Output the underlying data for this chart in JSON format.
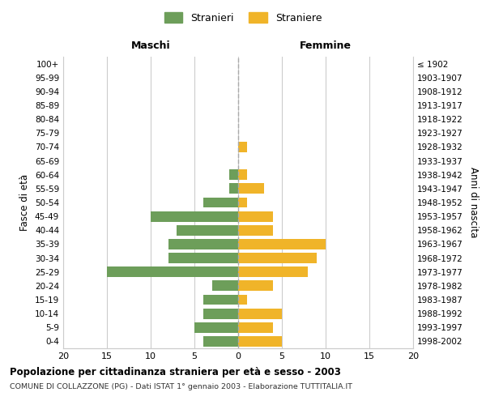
{
  "age_groups": [
    "100+",
    "95-99",
    "90-94",
    "85-89",
    "80-84",
    "75-79",
    "70-74",
    "65-69",
    "60-64",
    "55-59",
    "50-54",
    "45-49",
    "40-44",
    "35-39",
    "30-34",
    "25-29",
    "20-24",
    "15-19",
    "10-14",
    "5-9",
    "0-4"
  ],
  "birth_years": [
    "≤ 1902",
    "1903-1907",
    "1908-1912",
    "1913-1917",
    "1918-1922",
    "1923-1927",
    "1928-1932",
    "1933-1937",
    "1938-1942",
    "1943-1947",
    "1948-1952",
    "1953-1957",
    "1958-1962",
    "1963-1967",
    "1968-1972",
    "1973-1977",
    "1978-1982",
    "1983-1987",
    "1988-1992",
    "1993-1997",
    "1998-2002"
  ],
  "maschi": [
    0,
    0,
    0,
    0,
    0,
    0,
    0,
    0,
    1,
    1,
    4,
    10,
    7,
    8,
    8,
    15,
    3,
    4,
    4,
    5,
    4
  ],
  "femmine": [
    0,
    0,
    0,
    0,
    0,
    0,
    1,
    0,
    1,
    3,
    1,
    4,
    4,
    10,
    9,
    8,
    4,
    1,
    5,
    4,
    5
  ],
  "color_maschi": "#6d9e5a",
  "color_femmine": "#f0b429",
  "title_main": "Popolazione per cittadinanza straniera per età e sesso - 2003",
  "title_sub": "COMUNE DI COLLAZZONE (PG) - Dati ISTAT 1° gennaio 2003 - Elaborazione TUTTITALIA.IT",
  "legend_maschi": "Stranieri",
  "legend_femmine": "Straniere",
  "xlabel_left": "Maschi",
  "xlabel_right": "Femmine",
  "ylabel_left": "Fasce di età",
  "ylabel_right": "Anni di nascita",
  "xlim": 20,
  "background_color": "#ffffff",
  "grid_color": "#cccccc"
}
